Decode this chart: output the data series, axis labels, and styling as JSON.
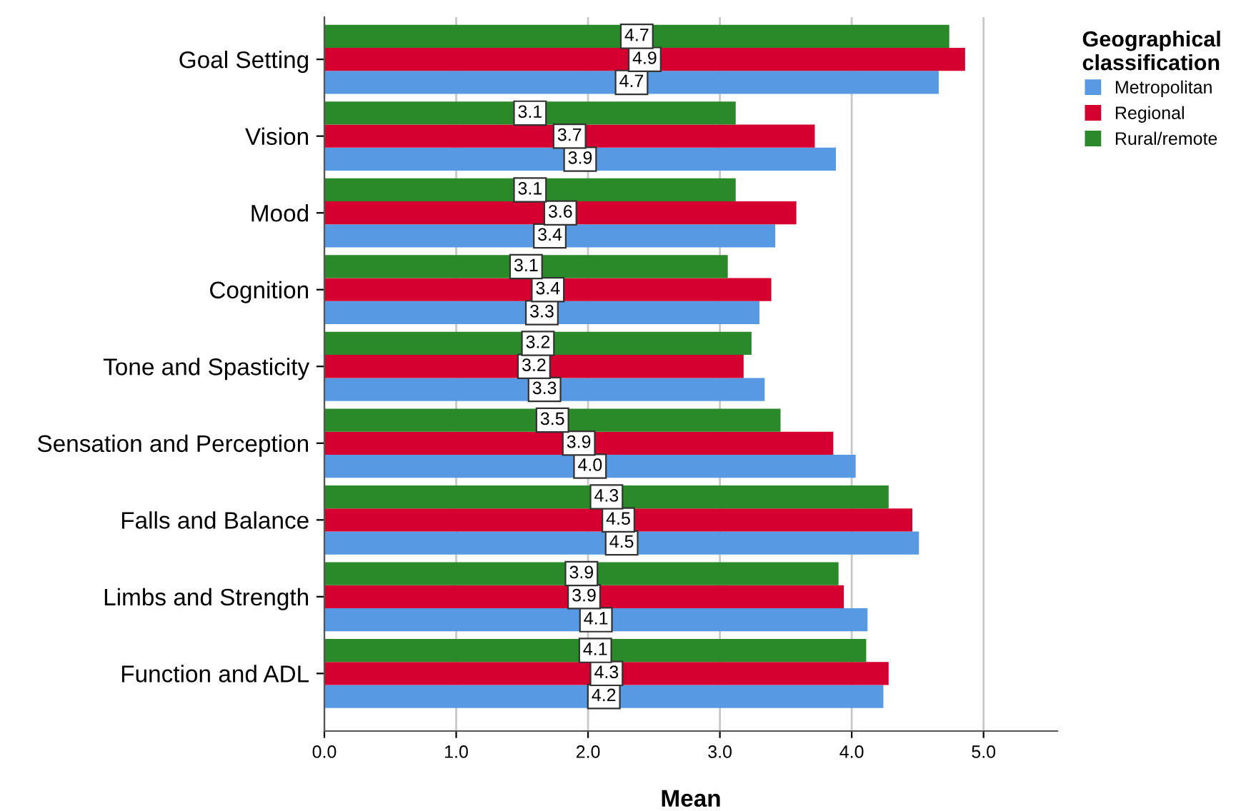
{
  "chart_data": {
    "type": "bar",
    "orientation": "horizontal",
    "xlabel": "Mean",
    "legend_title": "Geographical classification",
    "categories": [
      "Goal Setting",
      "Vision",
      "Mood",
      "Cognition",
      "Tone and Spasticity",
      "Sensation and Perception",
      "Falls and Balance",
      "Limbs and Strength",
      "Function and ADL"
    ],
    "series": [
      {
        "name": "Metropolitan",
        "color": "#5899e3",
        "values": [
          4.66,
          3.88,
          3.42,
          3.3,
          3.34,
          4.03,
          4.51,
          4.12,
          4.24
        ],
        "value_labels": [
          "4.7",
          "3.9",
          "3.4",
          "3.3",
          "3.3",
          "4.0",
          "4.5",
          "4.1",
          "4.2"
        ]
      },
      {
        "name": "Regional",
        "color": "#d5002f",
        "values": [
          4.86,
          3.72,
          3.58,
          3.39,
          3.18,
          3.86,
          4.46,
          3.94,
          4.28
        ],
        "value_labels": [
          "4.9",
          "3.7",
          "3.6",
          "3.4",
          "3.2",
          "3.9",
          "4.5",
          "3.9",
          "4.3"
        ]
      },
      {
        "name": "Rural/remote",
        "color": "#2a8a2a",
        "values": [
          4.74,
          3.12,
          3.12,
          3.06,
          3.24,
          3.46,
          4.28,
          3.9,
          4.11
        ],
        "value_labels": [
          "4.7",
          "3.1",
          "3.1",
          "3.1",
          "3.2",
          "3.5",
          "4.3",
          "3.9",
          "4.1"
        ]
      }
    ],
    "xlim": [
      0,
      5.56
    ],
    "xticks": [
      {
        "value": 0,
        "label": "0.0"
      },
      {
        "value": 1,
        "label": "1.0"
      },
      {
        "value": 2,
        "label": "2.0"
      },
      {
        "value": 3,
        "label": "3.0"
      },
      {
        "value": 4,
        "label": "4.0"
      },
      {
        "value": 5,
        "label": "5.0"
      }
    ],
    "grid": "x",
    "legend": "top right"
  }
}
